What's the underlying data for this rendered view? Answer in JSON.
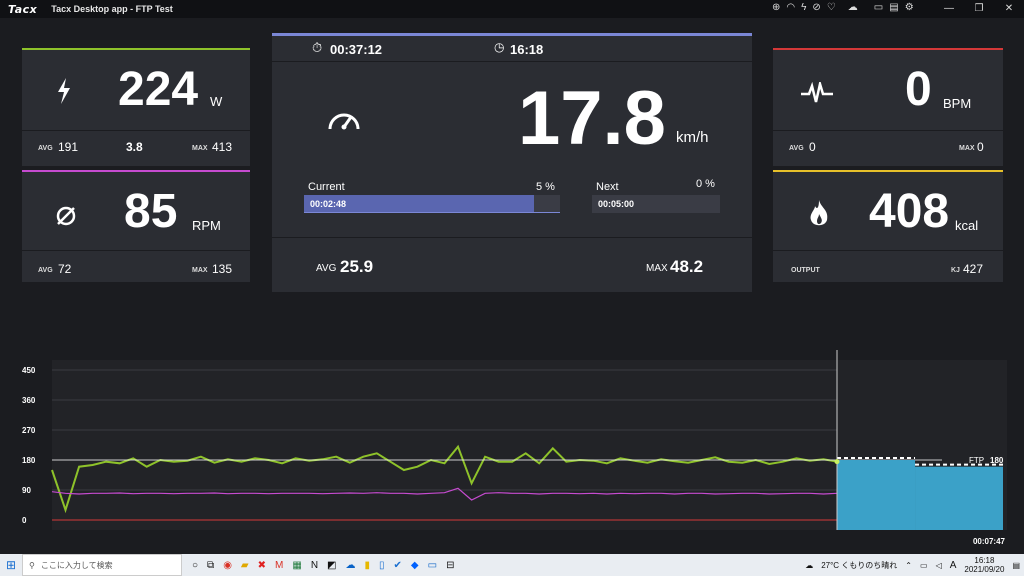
{
  "titlebar": {
    "logo": "Tacx",
    "title": "Tacx Desktop app - FTP Test"
  },
  "power": {
    "value": "224",
    "unit": "W",
    "avg_label": "AVG",
    "avg": "191",
    "ratio": "3.8",
    "max_label": "MAX",
    "max": "413",
    "accent": "#8ec22a"
  },
  "cadence": {
    "value": "85",
    "unit": "RPM",
    "avg_label": "AVG",
    "avg": "72",
    "max_label": "MAX",
    "max": "135",
    "accent": "#c64bd0"
  },
  "center": {
    "elapsed": "00:37:12",
    "clock": "16:18",
    "speed": "17.8",
    "speed_unit": "km/h",
    "current_label": "Current",
    "current_pct": "5 %",
    "current_time": "00:02:48",
    "current_fill": 0.9,
    "next_label": "Next",
    "next_pct": "0 %",
    "next_time": "00:05:00",
    "avg_label": "AVG",
    "avg": "25.9",
    "max_label": "MAX",
    "max": "48.2",
    "accent": "#7b87d6"
  },
  "heart": {
    "value": "0",
    "unit": "BPM",
    "avg_label": "AVG",
    "avg": "0",
    "max_label": "MAX",
    "max": "0",
    "accent": "#d43838"
  },
  "energy": {
    "value": "408",
    "unit": "kcal",
    "output_label": "OUTPUT",
    "kj_label": "KJ",
    "kj": "427",
    "accent": "#e6c02a"
  },
  "chart_data": {
    "type": "line",
    "y_ticks": [
      "450",
      "360",
      "270",
      "180",
      "90",
      "0"
    ],
    "ylim": [
      0,
      450
    ],
    "cursor_time": "00:37:12",
    "remaining_time": "00:07:47",
    "ftp_label": "FTP",
    "ftp_value": "180",
    "series": [
      {
        "name": "",
        "color": "#8ec22a",
        "values": [
          150,
          30,
          160,
          165,
          175,
          170,
          185,
          160,
          180,
          175,
          178,
          190,
          172,
          182,
          175,
          185,
          180,
          170,
          185,
          178,
          182,
          190,
          172,
          190,
          200,
          175,
          150,
          160,
          180,
          170,
          220,
          110,
          190,
          175,
          175,
          200,
          170,
          215,
          175,
          180,
          178,
          170,
          185,
          178,
          172,
          182,
          176,
          172,
          180,
          188,
          175,
          172,
          180,
          168,
          175,
          185,
          178,
          182,
          175
        ]
      },
      {
        "name": "",
        "color": "#c64bd0",
        "values": [
          85,
          80,
          78,
          80,
          80,
          81,
          79,
          80,
          80,
          79,
          80,
          80,
          81,
          79,
          80,
          80,
          79,
          80,
          80,
          80,
          79,
          80,
          81,
          80,
          82,
          80,
          80,
          78,
          80,
          82,
          95,
          60,
          80,
          82,
          80,
          80,
          78,
          80,
          80,
          79,
          80,
          78,
          80,
          79,
          80,
          80,
          78,
          80,
          80,
          78,
          79,
          80,
          80,
          78,
          79,
          80,
          80,
          78,
          80
        ]
      }
    ],
    "ftp_steps": [
      {
        "t": 0.0,
        "pct": 0.63
      },
      {
        "t": 0.47,
        "pct": 0.56
      }
    ]
  },
  "taskbar": {
    "search_placeholder": "ここに入力して検索",
    "weather": "27°C くもりのち晴れ",
    "time": "16:18",
    "date": "2021/09/20",
    "ime": "A"
  }
}
